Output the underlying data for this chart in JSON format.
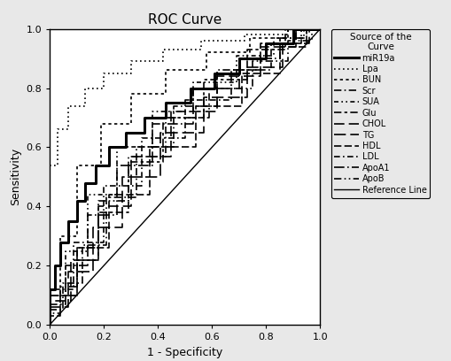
{
  "title": "ROC Curve",
  "xlabel": "1 - Specificity",
  "ylabel": "Sensitivity",
  "legend_title": "Source of the\nCurve",
  "xlim": [
    0.0,
    1.0
  ],
  "ylim": [
    0.0,
    1.0
  ],
  "xticks": [
    0.0,
    0.2,
    0.4,
    0.6,
    0.8,
    1.0
  ],
  "yticks": [
    0.0,
    0.2,
    0.4,
    0.6,
    0.8,
    1.0
  ],
  "background_color": "#e8e8e8",
  "plot_background": "white",
  "title_fontsize": 11,
  "label_fontsize": 9,
  "tick_fontsize": 8,
  "legend_fontsize": 7,
  "legend_title_fontsize": 7.5,
  "curves": {
    "miR19a": {
      "x": [
        0.0,
        0.0,
        0.02,
        0.02,
        0.04,
        0.04,
        0.07,
        0.07,
        0.1,
        0.1,
        0.13,
        0.13,
        0.17,
        0.17,
        0.22,
        0.22,
        0.28,
        0.28,
        0.35,
        0.35,
        0.43,
        0.43,
        0.52,
        0.52,
        0.61,
        0.61,
        0.7,
        0.7,
        0.8,
        0.8,
        0.9,
        0.9,
        1.0
      ],
      "y": [
        0.0,
        0.12,
        0.12,
        0.2,
        0.2,
        0.28,
        0.28,
        0.35,
        0.35,
        0.42,
        0.42,
        0.48,
        0.48,
        0.54,
        0.54,
        0.6,
        0.6,
        0.65,
        0.65,
        0.7,
        0.7,
        0.75,
        0.75,
        0.8,
        0.8,
        0.85,
        0.85,
        0.9,
        0.9,
        0.95,
        0.95,
        1.0,
        1.0
      ],
      "lw": 2.2
    },
    "Lpa": {
      "x": [
        0.0,
        0.0,
        0.03,
        0.03,
        0.07,
        0.07,
        0.13,
        0.13,
        0.2,
        0.2,
        0.3,
        0.3,
        0.42,
        0.42,
        0.56,
        0.56,
        0.72,
        0.72,
        0.88,
        0.88,
        1.0
      ],
      "y": [
        0.0,
        0.54,
        0.54,
        0.66,
        0.66,
        0.74,
        0.74,
        0.8,
        0.8,
        0.85,
        0.85,
        0.89,
        0.89,
        0.93,
        0.93,
        0.96,
        0.96,
        0.98,
        0.98,
        1.0,
        1.0
      ],
      "lw": 1.2,
      "dashes": [
        1,
        2
      ]
    },
    "BUN": {
      "x": [
        0.0,
        0.0,
        0.04,
        0.04,
        0.1,
        0.1,
        0.19,
        0.19,
        0.3,
        0.3,
        0.43,
        0.43,
        0.58,
        0.58,
        0.74,
        0.74,
        0.88,
        0.88,
        1.0
      ],
      "y": [
        0.0,
        0.1,
        0.1,
        0.3,
        0.3,
        0.54,
        0.54,
        0.68,
        0.68,
        0.78,
        0.78,
        0.86,
        0.86,
        0.92,
        0.92,
        0.97,
        0.97,
        1.0,
        1.0
      ],
      "lw": 1.2,
      "dashes": [
        2,
        2
      ]
    },
    "Scr": {
      "x": [
        0.0,
        0.0,
        0.05,
        0.05,
        0.12,
        0.12,
        0.21,
        0.21,
        0.32,
        0.32,
        0.46,
        0.46,
        0.62,
        0.62,
        0.78,
        0.78,
        0.91,
        0.91,
        1.0
      ],
      "y": [
        0.0,
        0.05,
        0.05,
        0.14,
        0.14,
        0.27,
        0.27,
        0.43,
        0.43,
        0.6,
        0.6,
        0.74,
        0.74,
        0.86,
        0.86,
        0.95,
        0.95,
        1.0,
        1.0
      ],
      "lw": 1.2,
      "dashes": [
        5,
        2,
        1,
        2
      ]
    },
    "SUA": {
      "x": [
        0.0,
        0.0,
        0.06,
        0.06,
        0.14,
        0.14,
        0.25,
        0.25,
        0.38,
        0.38,
        0.53,
        0.53,
        0.69,
        0.69,
        0.83,
        0.83,
        0.94,
        0.94,
        1.0
      ],
      "y": [
        0.0,
        0.1,
        0.1,
        0.25,
        0.25,
        0.44,
        0.44,
        0.6,
        0.6,
        0.72,
        0.72,
        0.82,
        0.82,
        0.91,
        0.91,
        0.97,
        0.97,
        1.0,
        1.0
      ],
      "lw": 1.2,
      "dashes": [
        3,
        2,
        1,
        2,
        1,
        2
      ]
    },
    "Glu": {
      "x": [
        0.0,
        0.0,
        0.04,
        0.04,
        0.1,
        0.1,
        0.18,
        0.18,
        0.29,
        0.29,
        0.42,
        0.42,
        0.57,
        0.57,
        0.73,
        0.73,
        0.87,
        0.87,
        1.0
      ],
      "y": [
        0.0,
        0.03,
        0.03,
        0.1,
        0.1,
        0.22,
        0.22,
        0.38,
        0.38,
        0.55,
        0.55,
        0.7,
        0.7,
        0.83,
        0.83,
        0.93,
        0.93,
        1.0,
        1.0
      ],
      "lw": 1.2,
      "dashes": [
        5,
        2,
        2,
        2
      ]
    },
    "CHOL": {
      "x": [
        0.0,
        0.0,
        0.08,
        0.08,
        0.18,
        0.18,
        0.3,
        0.3,
        0.45,
        0.45,
        0.62,
        0.62,
        0.78,
        0.78,
        0.91,
        0.91,
        1.0
      ],
      "y": [
        0.0,
        0.08,
        0.08,
        0.22,
        0.22,
        0.4,
        0.4,
        0.57,
        0.57,
        0.72,
        0.72,
        0.84,
        0.84,
        0.94,
        0.94,
        1.0,
        1.0
      ],
      "lw": 1.2,
      "dashes": [
        7,
        3
      ]
    },
    "TG": {
      "x": [
        0.0,
        0.0,
        0.07,
        0.07,
        0.16,
        0.16,
        0.27,
        0.27,
        0.41,
        0.41,
        0.57,
        0.57,
        0.73,
        0.73,
        0.86,
        0.86,
        0.96,
        0.96,
        1.0
      ],
      "y": [
        0.0,
        0.06,
        0.06,
        0.18,
        0.18,
        0.33,
        0.33,
        0.5,
        0.5,
        0.65,
        0.65,
        0.77,
        0.77,
        0.87,
        0.87,
        0.95,
        0.95,
        1.0,
        1.0
      ],
      "lw": 1.2,
      "dashes": [
        8,
        3
      ]
    },
    "HDL": {
      "x": [
        0.0,
        0.0,
        0.1,
        0.1,
        0.22,
        0.22,
        0.37,
        0.37,
        0.54,
        0.54,
        0.71,
        0.71,
        0.85,
        0.85,
        0.95,
        0.95,
        1.0
      ],
      "y": [
        0.0,
        0.1,
        0.1,
        0.26,
        0.26,
        0.44,
        0.44,
        0.6,
        0.6,
        0.74,
        0.74,
        0.85,
        0.85,
        0.94,
        0.94,
        1.0,
        1.0
      ],
      "lw": 1.2,
      "dashes": [
        5,
        2
      ]
    },
    "LDL": {
      "x": [
        0.0,
        0.0,
        0.09,
        0.09,
        0.2,
        0.2,
        0.34,
        0.34,
        0.5,
        0.5,
        0.67,
        0.67,
        0.82,
        0.82,
        0.93,
        0.93,
        1.0
      ],
      "y": [
        0.0,
        0.12,
        0.12,
        0.28,
        0.28,
        0.47,
        0.47,
        0.63,
        0.63,
        0.76,
        0.76,
        0.86,
        0.86,
        0.95,
        0.95,
        1.0,
        1.0
      ],
      "lw": 1.2,
      "dashes": [
        4,
        2,
        1,
        2
      ]
    },
    "ApoA1": {
      "x": [
        0.0,
        0.0,
        0.06,
        0.06,
        0.14,
        0.14,
        0.25,
        0.25,
        0.38,
        0.38,
        0.53,
        0.53,
        0.7,
        0.7,
        0.85,
        0.85,
        0.95,
        0.95,
        1.0
      ],
      "y": [
        0.0,
        0.07,
        0.07,
        0.2,
        0.2,
        0.37,
        0.37,
        0.54,
        0.54,
        0.68,
        0.68,
        0.8,
        0.8,
        0.9,
        0.9,
        0.97,
        0.97,
        1.0,
        1.0
      ],
      "lw": 1.2,
      "dashes": [
        7,
        2,
        1,
        2
      ]
    },
    "ApoB": {
      "x": [
        0.0,
        0.0,
        0.04,
        0.04,
        0.1,
        0.1,
        0.18,
        0.18,
        0.29,
        0.29,
        0.43,
        0.43,
        0.59,
        0.59,
        0.75,
        0.75,
        0.88,
        0.88,
        0.97,
        0.97,
        1.0
      ],
      "y": [
        0.0,
        0.04,
        0.04,
        0.13,
        0.13,
        0.26,
        0.26,
        0.42,
        0.42,
        0.57,
        0.57,
        0.7,
        0.7,
        0.8,
        0.8,
        0.89,
        0.89,
        0.96,
        0.96,
        1.0,
        1.0
      ],
      "lw": 1.2,
      "dashes": [
        5,
        2,
        1,
        2,
        1,
        2
      ]
    }
  },
  "legend_entries": [
    {
      "label": "miR19a",
      "lw": 2.2,
      "dashes": null,
      "ls": "solid"
    },
    {
      "label": "Lpa",
      "lw": 1.2,
      "dashes": [
        1,
        2
      ],
      "ls": "dashed"
    },
    {
      "label": "BUN",
      "lw": 1.2,
      "dashes": [
        2,
        2
      ],
      "ls": "dashed"
    },
    {
      "label": "Scr",
      "lw": 1.2,
      "dashes": [
        5,
        2,
        1,
        2
      ],
      "ls": "dashed"
    },
    {
      "label": "SUA",
      "lw": 1.2,
      "dashes": [
        3,
        2,
        1,
        2,
        1,
        2
      ],
      "ls": "dashed"
    },
    {
      "label": "Glu",
      "lw": 1.2,
      "dashes": [
        5,
        2,
        2,
        2
      ],
      "ls": "dashed"
    },
    {
      "label": "CHOL",
      "lw": 1.2,
      "dashes": [
        7,
        3
      ],
      "ls": "dashed"
    },
    {
      "label": "TG",
      "lw": 1.2,
      "dashes": [
        8,
        3
      ],
      "ls": "dashed"
    },
    {
      "label": "HDL",
      "lw": 1.2,
      "dashes": [
        5,
        2
      ],
      "ls": "dashed"
    },
    {
      "label": "LDL",
      "lw": 1.2,
      "dashes": [
        4,
        2,
        1,
        2
      ],
      "ls": "dashed"
    },
    {
      "label": "ApoA1",
      "lw": 1.2,
      "dashes": [
        7,
        2,
        1,
        2
      ],
      "ls": "dashed"
    },
    {
      "label": "ApoB",
      "lw": 1.2,
      "dashes": [
        5,
        2,
        1,
        2,
        1,
        2
      ],
      "ls": "dashed"
    },
    {
      "label": "Reference Line",
      "lw": 1.0,
      "dashes": null,
      "ls": "solid"
    }
  ]
}
